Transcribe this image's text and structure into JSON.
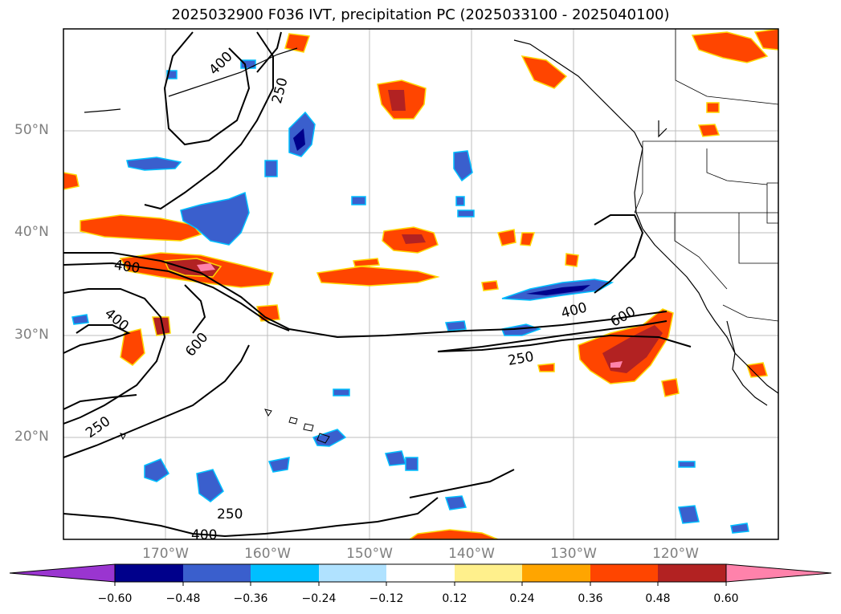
{
  "title": "2025032900 F036 IVT, precipitation PC (2025033100 - 2025040100)",
  "map": {
    "lat_labels": [
      "50°N",
      "40°N",
      "30°N",
      "20°N"
    ],
    "lon_labels": [
      "170°W",
      "160°W",
      "150°W",
      "140°W",
      "130°W",
      "120°W"
    ],
    "contour_labels": [
      "400",
      "250",
      "400",
      "400",
      "600",
      "250",
      "250",
      "400",
      "400",
      "600",
      "250"
    ]
  },
  "colorbar": {
    "ticks": [
      "−0.60",
      "−0.48",
      "−0.36",
      "−0.24",
      "−0.12",
      "0.12",
      "0.24",
      "0.36",
      "0.48",
      "0.60"
    ],
    "colors": [
      "#9a35d0",
      "#00008b",
      "#3a5fcd",
      "#00bfff",
      "#b0e2ff",
      "#ffffff",
      "#fff08c",
      "#ffa500",
      "#ff4500",
      "#b22222",
      "#ff82ab"
    ]
  }
}
